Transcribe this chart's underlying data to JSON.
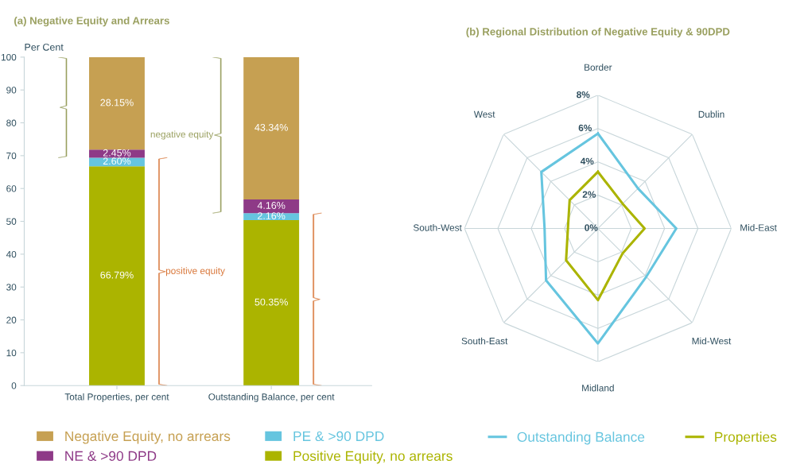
{
  "chart_data": [
    {
      "type": "bar",
      "title": "(a) Negative Equity and Arrears",
      "ylabel": "Per Cent",
      "categories": [
        "Total Properties, per cent",
        "Outstanding Balance, per cent"
      ],
      "stacked": true,
      "ylim": [
        0,
        100
      ],
      "yticks": [
        0,
        10,
        20,
        30,
        40,
        50,
        60,
        70,
        80,
        90,
        100
      ],
      "grid": false,
      "legend": "bottom",
      "series": [
        {
          "name": "Positive Equity, no arrears",
          "color": "#abb400",
          "values": [
            66.79,
            50.35
          ],
          "value_labels": [
            "66.79%",
            "50.35%"
          ]
        },
        {
          "name": "PE & >90 DPD",
          "color": "#66c5df",
          "values": [
            2.6,
            2.16
          ],
          "value_labels": [
            "2.60%",
            "2.16%"
          ]
        },
        {
          "name": "NE & >90 DPD",
          "color": "#8e3a87",
          "values": [
            2.45,
            4.16
          ],
          "value_labels": [
            "2.45%",
            "4.16%"
          ]
        },
        {
          "name": "Negative Equity, no arrears",
          "color": "#c6a052",
          "values": [
            28.15,
            43.34
          ],
          "value_labels": [
            "28.15%",
            "43.34%"
          ]
        }
      ],
      "annotations": [
        "negative equity",
        "positive equity"
      ]
    },
    {
      "type": "radar",
      "title": "(b) Regional Distribution of Negative Equity & 90DPD",
      "categories": [
        "Border",
        "Dublin",
        "Mid-East",
        "Mid-West",
        "Midland",
        "South-East",
        "South-West",
        "West"
      ],
      "ylim": [
        0,
        8
      ],
      "yticks": [
        {
          "value": 0,
          "label": "0%"
        },
        {
          "value": 2,
          "label": "2%"
        },
        {
          "value": 4,
          "label": "4%"
        },
        {
          "value": 6,
          "label": "6%"
        },
        {
          "value": 8,
          "label": "8%"
        }
      ],
      "grid": true,
      "legend": "bottom",
      "marker": "none",
      "series": [
        {
          "name": "Outstanding Balance",
          "color": "#66c5df",
          "values": [
            5.7,
            3.4,
            4.7,
            4.1,
            6.9,
            4.4,
            3.2,
            4.8
          ]
        },
        {
          "name": "Properties",
          "color": "#abb400",
          "values": [
            3.4,
            2.1,
            2.8,
            2.1,
            4.3,
            2.7,
            1.8,
            2.4
          ]
        }
      ]
    }
  ]
}
